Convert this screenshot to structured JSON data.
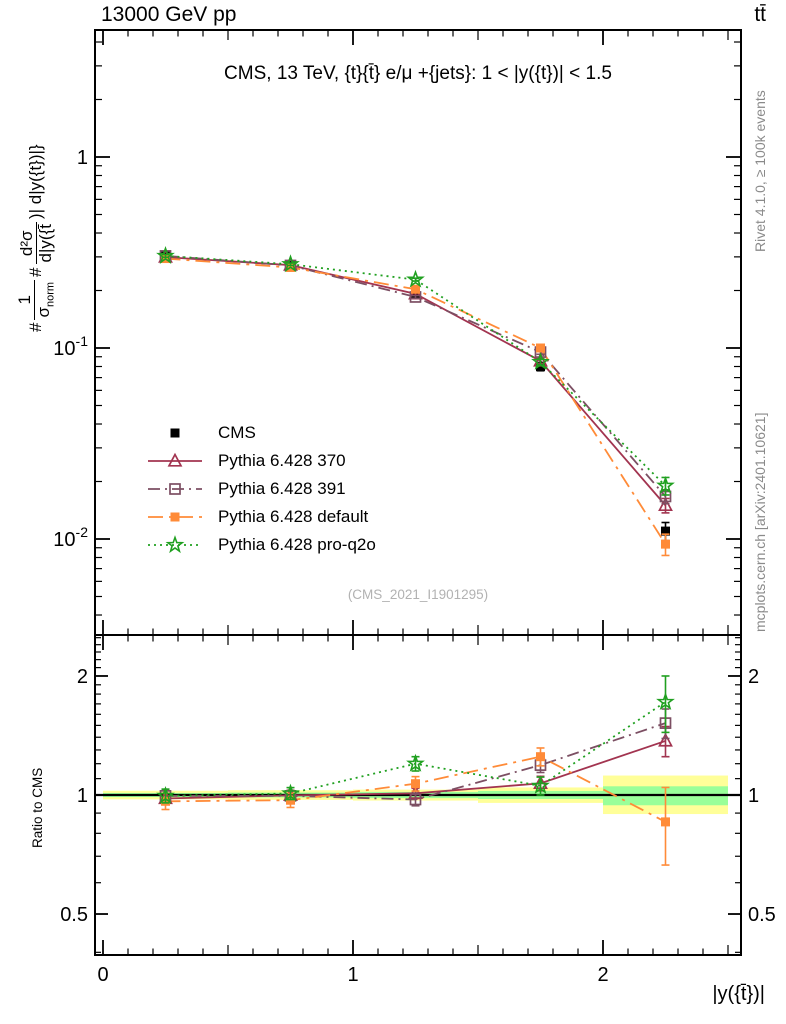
{
  "header": {
    "beam": "13000 GeV pp",
    "process": "tt̄"
  },
  "panel_title": "CMS, 13 TeV, {t}{t̄} e/μ +{jets}: 1 < |y({t})| < 1.5",
  "watermark": "(CMS_2021_I1901295)",
  "side_notes": {
    "rivet": "Rivet 4.1.0, ≥ 100k events",
    "mcplots": "mcplots.cern.ch [arXiv:2401.10621]"
  },
  "axes": {
    "x_label": "|y({t̄})|",
    "ratio_label": "Ratio to CMS",
    "y_label": {
      "hash1": "#",
      "num1": "1",
      "den1": "σ",
      "den1_sub": "norm",
      "hash2": "#",
      "num2": "d²σ",
      "den2": "d|y({t̄",
      "tail": ")| d|y({t})|}"
    },
    "x_tick_labels": [
      {
        "v": 0,
        "t": "0"
      },
      {
        "v": 1,
        "t": "1"
      },
      {
        "v": 2,
        "t": "2"
      }
    ],
    "main_y_tick_labels": [
      {
        "v": 1,
        "t": "1",
        "e": ""
      },
      {
        "v": 0.1,
        "t": "10",
        "e": "-1"
      },
      {
        "v": 0.01,
        "t": "10",
        "e": "-2"
      }
    ],
    "ratio_y_tick_labels": [
      {
        "v": 2,
        "t": "2"
      },
      {
        "v": 1,
        "t": "1"
      },
      {
        "v": 0.5,
        "t": "0.5"
      }
    ]
  },
  "chart_data": {
    "type": "line",
    "title": "CMS, 13 TeV, {t}{t̄} e/μ +{jets}: 1 < |y({t})| < 1.5",
    "xlabel": "|y({t̄})|",
    "ylabel": "#1/σ_norm # d²σ/d|y({t̄})| d|y({t})|}",
    "ratio_ylabel": "Ratio to CMS",
    "x": [
      0.25,
      0.75,
      1.25,
      1.75,
      2.25
    ],
    "bin_edges": [
      0,
      0.5,
      1.0,
      1.5,
      2.0,
      2.5
    ],
    "x_range": [
      -0.032,
      2.552
    ],
    "main_ylim": [
      0.0032,
      4.6
    ],
    "ratio_ylim": [
      0.394,
      2.54
    ],
    "legend_position": "middle-left",
    "grid": false,
    "series": [
      {
        "name": "CMS",
        "color": "#000000",
        "line": "none",
        "marker": "filled-square",
        "values": [
          0.305,
          0.272,
          0.19,
          0.08,
          0.011
        ],
        "errors": [
          0.009,
          0.008,
          0.006,
          0.004,
          0.0012
        ],
        "ratio": [
          1,
          1,
          1,
          1,
          1
        ],
        "ratio_err": [
          0,
          0,
          0,
          0,
          0
        ]
      },
      {
        "name": "Pythia 6.428 370",
        "color": "#a23450",
        "line": "solid",
        "marker": "open-triangle",
        "values": [
          0.299,
          0.2715,
          0.192,
          0.0855,
          0.015
        ],
        "errors": [
          0.004,
          0.004,
          0.003,
          0.0025,
          0.0013
        ],
        "ratio": [
          0.98,
          0.998,
          1.01,
          1.07,
          1.37
        ],
        "ratio_err": [
          0.03,
          0.03,
          0.03,
          0.045,
          0.12
        ]
      },
      {
        "name": "Pythia 6.428 391",
        "color": "#7c4f63",
        "line": "dashdot",
        "marker": "open-square",
        "values": [
          0.3035,
          0.2705,
          0.185,
          0.0952,
          0.0167
        ],
        "errors": [
          0.004,
          0.004,
          0.003,
          0.0025,
          0.0014
        ],
        "ratio": [
          0.995,
          0.995,
          0.974,
          1.19,
          1.52
        ],
        "ratio_err": [
          0.035,
          0.03,
          0.035,
          0.05,
          0.13
        ]
      },
      {
        "name": "Pythia 6.428 default",
        "color": "#ff8b38",
        "line": "dashdot-long",
        "marker": "filled-square",
        "values": [
          0.294,
          0.264,
          0.203,
          0.1,
          0.0094
        ],
        "errors": [
          0.005,
          0.005,
          0.004,
          0.003,
          0.0012
        ],
        "ratio": [
          0.964,
          0.97,
          1.068,
          1.25,
          0.855
        ],
        "ratio_err": [
          0.045,
          0.04,
          0.045,
          0.065,
          0.19
        ]
      },
      {
        "name": "Pythia 6.428 pro-q2o",
        "color": "#20a020",
        "line": "dotted",
        "marker": "open-star",
        "values": [
          0.3035,
          0.2745,
          0.228,
          0.0845,
          0.019
        ],
        "errors": [
          0.005,
          0.004,
          0.004,
          0.003,
          0.002
        ],
        "ratio": [
          0.995,
          1.009,
          1.2,
          1.055,
          1.72
        ],
        "ratio_err": [
          0.04,
          0.035,
          0.05,
          0.055,
          0.28
        ]
      }
    ],
    "uncertainty_bands": {
      "outer_color": "#ffff99",
      "inner_color": "#99ff99",
      "outer": [
        [
          0.975,
          1.025
        ],
        [
          0.972,
          1.028
        ],
        [
          0.968,
          1.032
        ],
        [
          0.955,
          1.045
        ],
        [
          0.895,
          1.12
        ]
      ],
      "inner": [
        [
          0.988,
          1.012
        ],
        [
          0.986,
          1.014
        ],
        [
          0.982,
          1.018
        ],
        [
          0.977,
          1.024
        ],
        [
          0.942,
          1.052
        ]
      ]
    }
  }
}
